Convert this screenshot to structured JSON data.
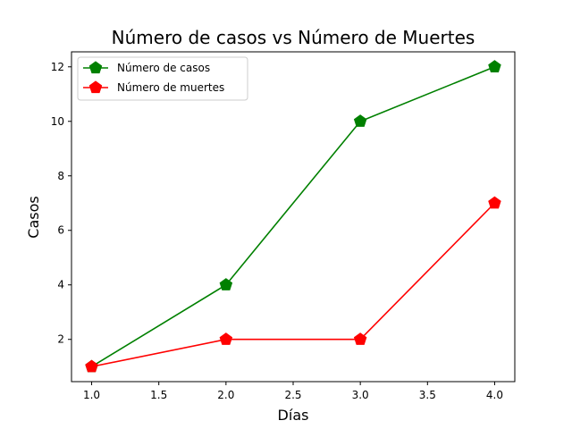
{
  "chart_data": {
    "type": "line",
    "title": "Número de casos vs Número de Muertes",
    "xlabel": "Días",
    "ylabel": "Casos",
    "x": [
      1.0,
      2.0,
      3.0,
      4.0
    ],
    "xlim": [
      0.85,
      4.15
    ],
    "ylim": [
      0.45,
      12.55
    ],
    "xticks": [
      1.0,
      1.5,
      2.0,
      2.5,
      3.0,
      3.5,
      4.0
    ],
    "xtick_labels": [
      "1.0",
      "1.5",
      "2.0",
      "2.5",
      "3.0",
      "3.5",
      "4.0"
    ],
    "yticks": [
      2,
      4,
      6,
      8,
      10,
      12
    ],
    "ytick_labels": [
      "2",
      "4",
      "6",
      "8",
      "10",
      "12"
    ],
    "grid": false,
    "legend_position": "upper-left",
    "series": [
      {
        "name": "Número de casos",
        "values": [
          1,
          4,
          10,
          12
        ],
        "color": "#008000",
        "marker": "pentagon"
      },
      {
        "name": "Número de muertes",
        "values": [
          1,
          2,
          2,
          7
        ],
        "color": "#ff0000",
        "marker": "pentagon"
      }
    ]
  }
}
